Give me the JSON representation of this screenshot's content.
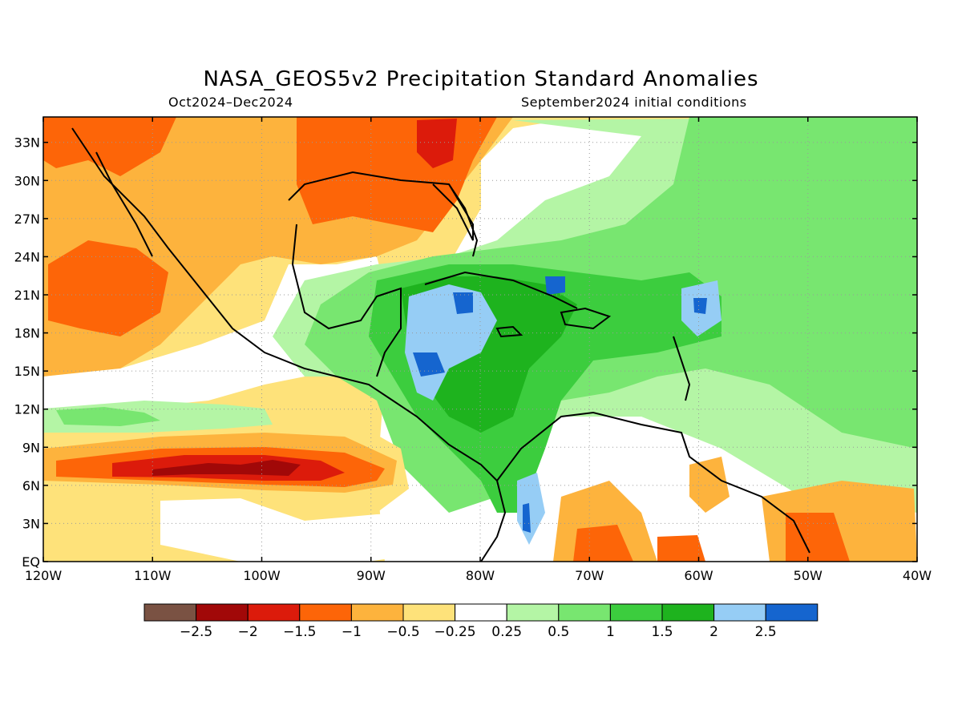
{
  "title": "NASA_GEOS5v2 Precipitation Standard Anomalies",
  "period": "Oct2024–Dec2024",
  "init": "September2024 initial conditions",
  "map": {
    "lon_range": [
      -120,
      -40
    ],
    "lat_range": [
      0,
      35
    ],
    "lat_ticks": [
      {
        "value": 33,
        "label": "33N"
      },
      {
        "value": 30,
        "label": "30N"
      },
      {
        "value": 27,
        "label": "27N"
      },
      {
        "value": 24,
        "label": "24N"
      },
      {
        "value": 21,
        "label": "21N"
      },
      {
        "value": 18,
        "label": "18N"
      },
      {
        "value": 15,
        "label": "15N"
      },
      {
        "value": 12,
        "label": "12N"
      },
      {
        "value": 9,
        "label": "9N"
      },
      {
        "value": 6,
        "label": "6N"
      },
      {
        "value": 3,
        "label": "3N"
      },
      {
        "value": 0,
        "label": "EQ"
      }
    ],
    "lon_ticks": [
      {
        "value": -120,
        "label": "120W"
      },
      {
        "value": -110,
        "label": "110W"
      },
      {
        "value": -100,
        "label": "100W"
      },
      {
        "value": -90,
        "label": "90W"
      },
      {
        "value": -80,
        "label": "80W"
      },
      {
        "value": -70,
        "label": "70W"
      },
      {
        "value": -60,
        "label": "60W"
      },
      {
        "value": -50,
        "label": "50W"
      },
      {
        "value": -40,
        "label": "40W"
      }
    ],
    "grid": "dotted"
  },
  "colorbar": {
    "colors": [
      "#7a5243",
      "#a10808",
      "#dc1b0b",
      "#fd6508",
      "#fdb33d",
      "#fee27a",
      "#ffffff",
      "#b4f5a5",
      "#78e670",
      "#3ccd3e",
      "#1eb31e",
      "#96cdf5",
      "#1565cf"
    ],
    "labels": [
      "−2.5",
      "−2",
      "−1.5",
      "−1",
      "−0.5",
      "−0.25",
      "0.25",
      "0.5",
      "1",
      "1.5",
      "2",
      "2.5"
    ]
  }
}
